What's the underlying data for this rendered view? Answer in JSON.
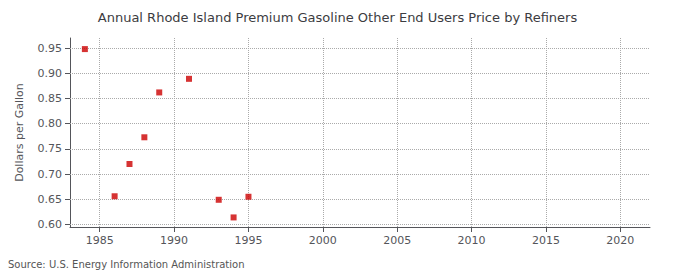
{
  "chart_data": {
    "type": "scatter",
    "title": "Annual Rhode Island Premium Gasoline Other End Users Price by Refiners",
    "ylabel": "Dollars per Gallon",
    "annotations": [
      "Source: U.S. Energy Information Administration"
    ],
    "x": [
      1984,
      1986,
      1987,
      1988,
      1989,
      1991,
      1993,
      1994,
      1995
    ],
    "values": [
      0.948,
      0.656,
      0.72,
      0.773,
      0.862,
      0.889,
      0.649,
      0.614,
      0.655
    ],
    "xlim": [
      1983,
      2022
    ],
    "ylim": [
      0.595,
      0.97
    ],
    "xticks": [
      1985,
      1990,
      1995,
      2000,
      2005,
      2010,
      2015,
      2020
    ],
    "yticks": [
      {
        "value": 0.6,
        "label": "0.60"
      },
      0.65,
      {
        "value": 0.7,
        "label": "0.70"
      },
      0.75,
      {
        "value": 0.8,
        "label": "0.80"
      },
      0.85,
      {
        "value": 0.9,
        "label": "0.90"
      },
      0.95
    ],
    "color": "#cc0000",
    "marker": "square",
    "grid": true
  }
}
